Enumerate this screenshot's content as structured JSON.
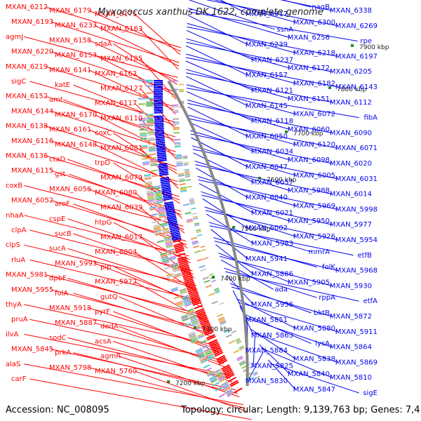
{
  "title": "Myxococcus xanthus DK 1622, complete genome",
  "footer": {
    "accession": "Accession: NC_008095",
    "info": "Topology: circular; Length: 9,139,763 bp; Genes: 7,410"
  },
  "colors": {
    "forward": "#ff0000",
    "reverse": "#0000ee",
    "backbone": "#888888",
    "tick_mark": "#228822"
  },
  "kbp_ticks": [
    "7900 kbp",
    "7800 kbp",
    "7700 kbp",
    "7600 kbp",
    "7500 kbp",
    "7400 kbp",
    "7300 kbp",
    "7200 kbp"
  ],
  "left_labels": [
    "MXAN_6212",
    "MXAN_6179",
    "MXAN_6171",
    "MXAN_6193",
    "MXAN_6233",
    "MXAN_6163",
    "agmJ",
    "MXAN_6158",
    "sdaA",
    "MXAN_6220",
    "MXAN_6153",
    "MXAN_6185",
    "MXAN_6219",
    "MXAN_6141",
    "MXAN_6162",
    "sigC",
    "katE",
    "MXAN_6127",
    "MXAN_6152",
    "amt",
    "MXAN_6117",
    "MXAN_6144",
    "MXAN_6170",
    "MXAN_6110",
    "MXAN_6138",
    "MXAN_6161",
    "coxC",
    "MXAN_6116",
    "MXAN_6148",
    "MXAN_6081",
    "MXAN_6136",
    "ctaD",
    "trpD",
    "MXAN_6115",
    "gst",
    "MXAN_6079",
    "coxB",
    "MXAN_6056",
    "MXAN_6080",
    "MXAN_6052",
    "aroF",
    "MXAN_6039",
    "nhaA",
    "cspE",
    "htpG",
    "clpA",
    "sucB",
    "MXAN_6017",
    "clpS",
    "sucA",
    "MXAN_6004",
    "rluA",
    "MXAN_5993",
    "pip",
    "MXAN_5981",
    "dpbF",
    "MXAN_5972",
    "MXAN_5955",
    "folA",
    "gutQ",
    "thyA",
    "MXAN_5918",
    "pyrF",
    "pruA",
    "MXAN_5887",
    "dedA",
    "ilvA",
    "sodC",
    "acsA",
    "MXAN_5845",
    "prkA",
    "agmR",
    "alaS",
    "MXAN_5798",
    "MXAN_5760",
    "carF"
  ],
  "right_labels": [
    "nagB",
    "MXAN_6338",
    "MXAN_6317",
    "MXAN_6300",
    "MXAN_6269",
    "ssnA",
    "MXAN_6256",
    "rpe",
    "MXAN_6239",
    "MXAN_6218",
    "MXAN_6197",
    "MXAN_6237",
    "MXAN_6172",
    "MXAN_6205",
    "MXAN_6157",
    "MXAN_6182",
    "MXAN_6143",
    "MXAN_6121",
    "MXAN_6151",
    "MXAN_6112",
    "MXAN_6145",
    "MXAN_6072",
    "fibA",
    "MXAN_6118",
    "MXAN_6060",
    "MXAN_6090",
    "MXAN_6050",
    "MXAN_6120",
    "MXAN_6071",
    "MXAN_6034",
    "MXAN_6098",
    "MXAN_6020",
    "MXAN_6047",
    "MXAN_6005",
    "MXAN_6031",
    "MXAN_6057",
    "MXAN_5988",
    "MXAN_6014",
    "MXAN_6040",
    "MXAN_5969",
    "MXAN_5998",
    "MXAN_6021",
    "MXAN_5950",
    "MXAN_5977",
    "MXAN_6002",
    "MXAN_5926",
    "MXAN_5954",
    "MXAN_5983",
    "mmrA",
    "etfB",
    "MXAN_5941",
    "folK",
    "MXAN_5968",
    "MXAN_5886",
    "MXAN_5905",
    "MXAN_5930",
    "ada",
    "rppA",
    "etfA",
    "MXAN_5936",
    "bktB",
    "MXAN_5872",
    "MXAN_5851",
    "MXAN_5880",
    "MXAN_5911",
    "MXAN_5863",
    "lysA",
    "MXAN_5864",
    "MXAN_5884",
    "MXAN_5838",
    "MXAN_5869",
    "MXAN_5825",
    "MXAN_5840",
    "MXAN_5810",
    "MXAN_5830",
    "MXAN_5847",
    "sigE"
  ]
}
